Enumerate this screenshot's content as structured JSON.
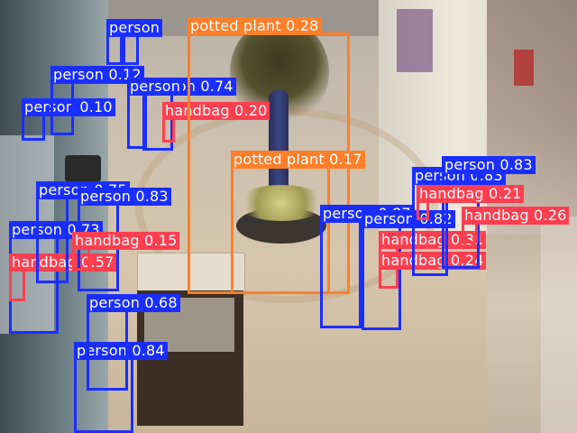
{
  "detections": [
    {
      "label": "person 0.84",
      "cls": "person"
    },
    {
      "label": "person 0.68",
      "cls": "person"
    },
    {
      "label": "person 0.73",
      "cls": "person"
    },
    {
      "label": "handbag 0.57",
      "cls": "handbag"
    },
    {
      "label": "person 0.75",
      "cls": "person"
    },
    {
      "label": "person 0.83",
      "cls": "person"
    },
    {
      "label": "handbag 0.15",
      "cls": "handbag"
    },
    {
      "label": "person 0.10",
      "cls": "person"
    },
    {
      "label": "person 0.12",
      "cls": "person"
    },
    {
      "label": "person 0.74",
      "cls": "person"
    },
    {
      "label": "handbag 0.20",
      "cls": "handbag"
    },
    {
      "label": "person",
      "cls": "person"
    },
    {
      "label": "person",
      "cls": "person"
    },
    {
      "label": "potted plant 0.28",
      "cls": "plant"
    },
    {
      "label": "potted plant 0.17",
      "cls": "plant"
    },
    {
      "label": "person 0.87",
      "cls": "person"
    },
    {
      "label": "person 0.82",
      "cls": "person"
    },
    {
      "label": "handbag 0.31",
      "cls": "handbag"
    },
    {
      "label": "handbag 0.24",
      "cls": "handbag"
    },
    {
      "label": "person 0.83",
      "cls": "person"
    },
    {
      "label": "person 0.83",
      "cls": "person"
    },
    {
      "label": "handbag 0.21",
      "cls": "handbag"
    },
    {
      "label": "handbag 0.26",
      "cls": "handbag"
    }
  ],
  "colors": {
    "person": "#1a2fff",
    "potted_plant": "#ff7f2a",
    "handbag": "#ff3f4f"
  }
}
